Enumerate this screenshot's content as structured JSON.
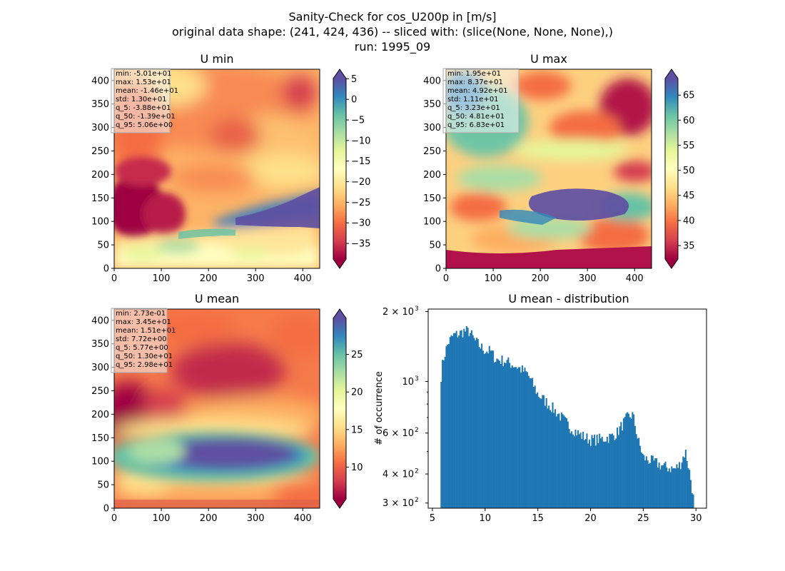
{
  "figure": {
    "suptitle_lines": [
      "Sanity-Check for cos_U200p in [m/s]",
      "original data shape: (241, 424, 436) -- sliced with: (slice(None, None, None),)",
      "run: 1995_09"
    ]
  },
  "chart_data": [
    {
      "id": "umin",
      "type": "heatmap",
      "title": "U min",
      "colormap": "Spectral",
      "xlim": [
        0,
        436
      ],
      "ylim": [
        0,
        424
      ],
      "xticks": [
        0,
        100,
        200,
        300,
        400
      ],
      "yticks": [
        0,
        50,
        100,
        150,
        200,
        250,
        300,
        350,
        400
      ],
      "colorbar": {
        "range": [
          -38.8,
          5.06
        ],
        "ticks": [
          -35,
          -30,
          -25,
          -20,
          -15,
          -10,
          -5,
          0,
          5
        ],
        "tick_labels": [
          "−35",
          "−30",
          "−25",
          "−20",
          "−15",
          "−10",
          "−5",
          "0",
          "5"
        ]
      },
      "stats": [
        "min: -5.01e+01",
        "max: 1.53e+01",
        "mean: -1.46e+01",
        "std: 1.30e+01",
        "q_5: -3.88e+01",
        "q_50: -1.39e+01",
        "q_95: 5.06e+00"
      ]
    },
    {
      "id": "umax",
      "type": "heatmap",
      "title": "U max",
      "colormap": "Spectral",
      "xlim": [
        0,
        436
      ],
      "ylim": [
        0,
        424
      ],
      "xticks": [
        0,
        100,
        200,
        300,
        400
      ],
      "yticks": [
        0,
        50,
        100,
        150,
        200,
        250,
        300,
        350,
        400
      ],
      "colorbar": {
        "range": [
          32.3,
          68.3
        ],
        "ticks": [
          35,
          40,
          45,
          50,
          55,
          60,
          65
        ],
        "tick_labels": [
          "35",
          "40",
          "45",
          "50",
          "55",
          "60",
          "65"
        ]
      },
      "stats": [
        "min: 1.95e+01",
        "max: 8.37e+01",
        "mean: 4.92e+01",
        "std: 1.11e+01",
        "q_5: 3.23e+01",
        "q_50: 4.81e+01",
        "q_95: 6.83e+01"
      ]
    },
    {
      "id": "umean",
      "type": "heatmap",
      "title": "U mean",
      "colormap": "Spectral",
      "xlim": [
        0,
        436
      ],
      "ylim": [
        0,
        424
      ],
      "xticks": [
        0,
        100,
        200,
        300,
        400
      ],
      "yticks": [
        0,
        50,
        100,
        150,
        200,
        250,
        300,
        350,
        400
      ],
      "colorbar": {
        "range": [
          5.77,
          29.8
        ],
        "ticks": [
          10,
          15,
          20,
          25
        ],
        "tick_labels": [
          "10",
          "15",
          "20",
          "25"
        ]
      },
      "stats": [
        "min: 2.73e-01",
        "max: 3.45e+01",
        "mean: 1.51e+01",
        "std: 7.72e+00",
        "q_5: 5.77e+00",
        "q_50: 1.30e+01",
        "q_95: 2.98e+01"
      ]
    },
    {
      "id": "hist",
      "type": "bar",
      "title": "U mean - distribution",
      "ylabel": "# of occurrence",
      "y_scale": "log",
      "xlim": [
        4.6,
        31.0
      ],
      "ylim": [
        285,
        2050
      ],
      "xticks": [
        5,
        10,
        15,
        20,
        25,
        30
      ],
      "yticks": [
        {
          "value": 300,
          "label": "3 × 10",
          "exp": "2"
        },
        {
          "value": 400,
          "label": "4 × 10",
          "exp": "2"
        },
        {
          "value": 600,
          "label": "6 × 10",
          "exp": "2"
        },
        {
          "value": 1000,
          "label": "10",
          "exp": "3"
        },
        {
          "value": 2000,
          "label": "2 × 10",
          "exp": "3"
        }
      ],
      "bin_range": [
        5.77,
        29.8
      ],
      "bin_count": 200,
      "color": "#1f77b4",
      "profile_x": [
        5.77,
        6.0,
        6.5,
        7.0,
        7.5,
        8.0,
        8.5,
        9.0,
        9.5,
        10.0,
        10.5,
        11.0,
        12.0,
        13.0,
        14.0,
        15.0,
        16.0,
        17.0,
        18.0,
        19.0,
        20.0,
        21.0,
        22.0,
        22.5,
        23.0,
        23.5,
        24.0,
        24.5,
        25.0,
        26.0,
        27.0,
        28.0,
        28.5,
        29.0,
        29.5,
        29.8
      ],
      "profile_y": [
        1000,
        1230,
        1470,
        1580,
        1600,
        1650,
        1640,
        1500,
        1420,
        1360,
        1350,
        1250,
        1220,
        1160,
        1080,
        880,
        800,
        720,
        640,
        590,
        560,
        565,
        580,
        600,
        650,
        700,
        720,
        560,
        470,
        450,
        430,
        420,
        440,
        500,
        380,
        300
      ]
    }
  ]
}
